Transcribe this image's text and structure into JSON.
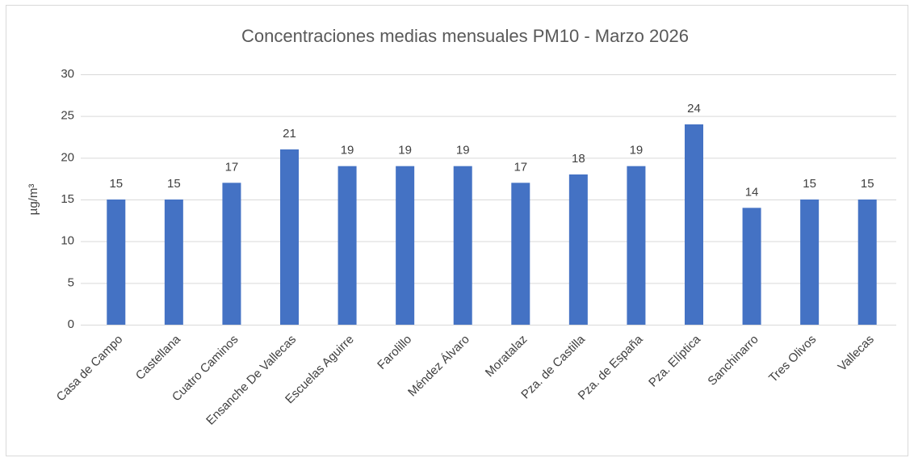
{
  "chart_data": {
    "type": "bar",
    "title": "Concentraciones medias mensuales PM10 - Marzo 2026",
    "y_label": "µg/m³",
    "categories": [
      "Casa de Campo",
      "Castellana",
      "Cuatro Caminos",
      "Ensanche De Vallecas",
      "Escuelas Aguirre",
      "Farolillo",
      "Méndez Álvaro",
      "Moratalaz",
      "Pza. de Castilla",
      "Pza. de España",
      "Pza. Elíptica",
      "Sanchinarro",
      "Tres Olivos",
      "Vallecas"
    ],
    "values": [
      15,
      15,
      17,
      21,
      19,
      19,
      19,
      17,
      18,
      19,
      24,
      14,
      15,
      15
    ],
    "color": "#4472c4",
    "ylim": [
      0,
      30
    ],
    "yticks": [
      0,
      5,
      10,
      15,
      20,
      25,
      30
    ],
    "grid": true,
    "data_labels": true
  }
}
